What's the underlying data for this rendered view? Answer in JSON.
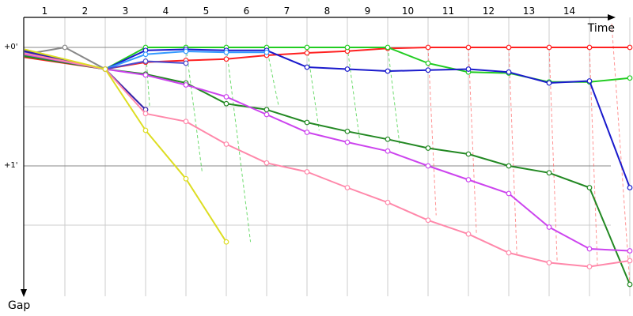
{
  "chart_data": {
    "type": "line",
    "xlabel": "Time",
    "ylabel": "Gap",
    "categories": [
      "1",
      "2",
      "3",
      "4",
      "5",
      "6",
      "7",
      "8",
      "9",
      "10",
      "11",
      "12",
      "13",
      "14"
    ],
    "y_tick_labels": [
      {
        "label": "+0'",
        "value": 0
      },
      {
        "label": "+1'",
        "value": 60
      }
    ],
    "y_axis_direction": "down",
    "grid": true,
    "series": [
      {
        "color": "#888888",
        "points": [
          [
            0.0,
            3.5
          ],
          [
            1.0,
            0.0
          ],
          [
            2.0,
            11.0
          ]
        ]
      },
      {
        "color": "#ff2020",
        "points": [
          [
            0.0,
            5.0
          ],
          [
            2.0,
            11.0
          ],
          [
            3.0,
            7.5
          ],
          [
            4.0,
            6.6
          ],
          [
            5.0,
            5.9
          ],
          [
            6.0,
            4.0
          ],
          [
            7.0,
            2.8
          ],
          [
            8.0,
            1.9
          ],
          [
            9.0,
            0.5
          ],
          [
            10.0,
            0.0
          ],
          [
            11.0,
            0.0
          ],
          [
            12.0,
            0.0
          ],
          [
            13.0,
            0.0
          ],
          [
            14.0,
            0.0
          ],
          [
            15.0,
            0.0
          ]
        ]
      },
      {
        "color": "#22cc22",
        "points": [
          [
            0.0,
            4.0
          ],
          [
            2.0,
            11.0
          ],
          [
            3.0,
            0.0
          ],
          [
            4.0,
            0.0
          ],
          [
            5.0,
            0.0
          ],
          [
            6.0,
            0.0
          ],
          [
            7.0,
            0.0
          ],
          [
            8.0,
            0.0
          ],
          [
            9.0,
            0.0
          ],
          [
            10.0,
            8.0
          ],
          [
            11.0,
            12.5
          ],
          [
            12.0,
            13.0
          ],
          [
            13.0,
            17.5
          ],
          [
            14.0,
            17.5
          ],
          [
            15.0,
            15.5
          ]
        ]
      },
      {
        "color": "#1a1acc",
        "points": [
          [
            0.0,
            1.5
          ],
          [
            2.0,
            11.0
          ],
          [
            3.0,
            1.5
          ],
          [
            4.0,
            1.0
          ],
          [
            5.0,
            1.5
          ],
          [
            6.0,
            1.5
          ],
          [
            7.0,
            10.0
          ],
          [
            8.0,
            11.0
          ],
          [
            9.0,
            12.0
          ],
          [
            10.0,
            11.5
          ],
          [
            11.0,
            11.0
          ],
          [
            12.0,
            12.5
          ],
          [
            13.0,
            18.0
          ],
          [
            14.0,
            17.0
          ],
          [
            15.0,
            71.0
          ]
        ]
      },
      {
        "color": "#3399ff",
        "points": [
          [
            0.0,
            2.5
          ],
          [
            2.0,
            11.0
          ],
          [
            3.0,
            3.5
          ],
          [
            4.0,
            2.0
          ],
          [
            5.0,
            2.5
          ],
          [
            6.0,
            2.5
          ]
        ]
      },
      {
        "color": "#4a4ad0",
        "points": [
          [
            0.0,
            3.0
          ],
          [
            2.0,
            11.0
          ],
          [
            3.0,
            7.0
          ],
          [
            4.0,
            8.0
          ]
        ]
      },
      {
        "color": "#3322aa",
        "points": [
          [
            0.0,
            2.0
          ],
          [
            2.0,
            11.0
          ],
          [
            3.0,
            31.5
          ]
        ]
      },
      {
        "color": "#228822",
        "points": [
          [
            0.0,
            4.5
          ],
          [
            2.0,
            11.0
          ],
          [
            3.0,
            13.5
          ],
          [
            4.0,
            18.0
          ],
          [
            5.0,
            28.5
          ],
          [
            6.0,
            31.5
          ],
          [
            7.0,
            38.0
          ],
          [
            8.0,
            42.5
          ],
          [
            9.0,
            46.5
          ],
          [
            10.0,
            51.0
          ],
          [
            11.0,
            54.0
          ],
          [
            12.0,
            60.0
          ],
          [
            13.0,
            63.5
          ],
          [
            14.0,
            71.0
          ],
          [
            15.0,
            120.0
          ]
        ]
      },
      {
        "color": "#cc44ee",
        "points": [
          [
            0.0,
            3.5
          ],
          [
            2.0,
            11.0
          ],
          [
            3.0,
            14.0
          ],
          [
            4.0,
            19.0
          ],
          [
            5.0,
            25.0
          ],
          [
            6.0,
            34.0
          ],
          [
            7.0,
            43.0
          ],
          [
            8.0,
            48.0
          ],
          [
            9.0,
            52.5
          ],
          [
            10.0,
            60.0
          ],
          [
            11.0,
            67.0
          ],
          [
            12.0,
            74.0
          ],
          [
            13.0,
            91.0
          ],
          [
            14.0,
            102.0
          ],
          [
            15.0,
            103.0
          ]
        ]
      },
      {
        "color": "#ff88aa",
        "points": [
          [
            0.0,
            3.0
          ],
          [
            2.0,
            11.0
          ],
          [
            3.0,
            33.5
          ],
          [
            4.0,
            37.5
          ],
          [
            5.0,
            49.0
          ],
          [
            6.0,
            58.5
          ],
          [
            7.0,
            63.0
          ],
          [
            8.0,
            71.0
          ],
          [
            9.0,
            78.5
          ],
          [
            10.0,
            87.5
          ],
          [
            11.0,
            94.5
          ],
          [
            12.0,
            104.0
          ],
          [
            13.0,
            109.0
          ],
          [
            14.0,
            111.0
          ],
          [
            15.0,
            108.0
          ]
        ]
      },
      {
        "color": "#dddd22",
        "points": [
          [
            0.0,
            1.0
          ],
          [
            2.0,
            11.0
          ],
          [
            3.0,
            42.0
          ],
          [
            4.0,
            66.5
          ],
          [
            5.0,
            98.5
          ]
        ]
      }
    ],
    "pit_stop_markers": [
      {
        "color": "#33cc33",
        "lines": [
          [
            3.0,
            0.0,
            3.1,
            30.0
          ],
          [
            4.0,
            0.0,
            4.4,
            63.0
          ],
          [
            5.0,
            0.0,
            5.6,
            98.5
          ],
          [
            6.0,
            0.0,
            6.3,
            30.0
          ],
          [
            7.0,
            0.0,
            7.3,
            42.0
          ],
          [
            8.0,
            0.0,
            8.3,
            46.0
          ],
          [
            9.0,
            0.0,
            9.3,
            50.0
          ]
        ]
      },
      {
        "color": "#ff6666",
        "lines": [
          [
            10.0,
            0.0,
            10.2,
            85.0
          ],
          [
            11.0,
            0.0,
            11.2,
            95.0
          ],
          [
            12.0,
            0.0,
            12.2,
            105.0
          ],
          [
            13.0,
            0.0,
            13.2,
            109.0
          ],
          [
            14.0,
            0.0,
            14.2,
            112.0
          ],
          [
            14.55,
            -12.0,
            15.0,
            120.0
          ]
        ]
      }
    ]
  }
}
